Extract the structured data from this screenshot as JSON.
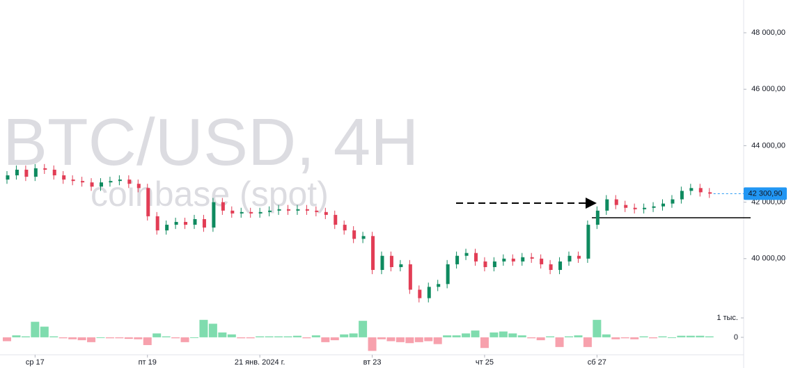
{
  "chart_data": {
    "type": "candlestick",
    "title": "BTC/USD, 4H",
    "subtitle": "coinbase (spot)",
    "categories": [
      null,
      null,
      null,
      "ср 17",
      null,
      null,
      null,
      null,
      null,
      null,
      null,
      null,
      null,
      null,
      null,
      "пт 19",
      null,
      null,
      null,
      null,
      null,
      null,
      null,
      null,
      null,
      null,
      null,
      "21 янв. 2024 г.",
      null,
      null,
      null,
      null,
      null,
      null,
      null,
      null,
      null,
      null,
      null,
      "вт 23",
      null,
      null,
      null,
      null,
      null,
      null,
      null,
      null,
      null,
      null,
      null,
      "чт 25",
      null,
      null,
      null,
      null,
      null,
      null,
      null,
      null,
      null,
      null,
      null,
      "сб 27",
      null,
      null,
      null,
      null,
      null,
      null,
      null,
      null,
      null,
      null,
      null,
      null
    ],
    "open": [
      42800,
      42950,
      43150,
      42900,
      43200,
      43150,
      42950,
      42800,
      42750,
      42700,
      42550,
      42700,
      42750,
      42800,
      42650,
      42500,
      41500,
      41000,
      41200,
      41300,
      41200,
      41400,
      41100,
      42000,
      41700,
      41600,
      41650,
      41600,
      41650,
      41700,
      41750,
      41700,
      41750,
      41700,
      41650,
      41550,
      41200,
      41000,
      40700,
      40800,
      39600,
      40100,
      39700,
      39800,
      38900,
      38600,
      39000,
      39100,
      39800,
      40100,
      40200,
      39900,
      39700,
      39900,
      40000,
      39900,
      40050,
      40000,
      39800,
      39600,
      39900,
      40100,
      40000,
      41200,
      41700,
      42100,
      41900,
      41800,
      41750,
      41800,
      41850,
      41950,
      42100,
      42400,
      42500,
      42350
    ],
    "high": [
      43100,
      43300,
      43300,
      43350,
      43350,
      43300,
      43100,
      42950,
      42900,
      42850,
      42850,
      42900,
      42950,
      42950,
      42800,
      42650,
      41650,
      41350,
      41450,
      41450,
      41550,
      41550,
      42150,
      42150,
      41850,
      41800,
      41800,
      41800,
      41850,
      41900,
      41900,
      41900,
      41900,
      41850,
      41800,
      41700,
      41350,
      41150,
      40950,
      40950,
      40250,
      40250,
      39950,
      39950,
      39050,
      39150,
      39250,
      39950,
      40250,
      40350,
      40350,
      40050,
      40050,
      40150,
      40150,
      40200,
      40200,
      40150,
      39950,
      40050,
      40250,
      40250,
      41350,
      41850,
      42250,
      42250,
      42050,
      41950,
      41950,
      42000,
      42100,
      42250,
      42550,
      42650,
      42650,
      42500
    ],
    "low": [
      42650,
      42800,
      42750,
      42750,
      43000,
      42800,
      42650,
      42600,
      42550,
      42400,
      42400,
      42550,
      42600,
      42500,
      42350,
      41350,
      40850,
      40850,
      41050,
      41050,
      41050,
      40950,
      40950,
      41550,
      41450,
      41450,
      41450,
      41450,
      41500,
      41550,
      41550,
      41550,
      41550,
      41500,
      41400,
      41050,
      40850,
      40550,
      40550,
      39450,
      39450,
      39550,
      39550,
      38750,
      38450,
      38450,
      38850,
      38950,
      39650,
      39950,
      39750,
      39550,
      39550,
      39750,
      39750,
      39750,
      39850,
      39650,
      39450,
      39450,
      39750,
      39850,
      39850,
      41050,
      41550,
      41750,
      41650,
      41600,
      41600,
      41650,
      41700,
      41800,
      41950,
      42250,
      42200,
      42150
    ],
    "close": [
      42950,
      43150,
      42900,
      43200,
      43150,
      42950,
      42800,
      42750,
      42700,
      42550,
      42700,
      42750,
      42800,
      42650,
      42500,
      41500,
      41000,
      41200,
      41300,
      41200,
      41400,
      41100,
      42000,
      41700,
      41600,
      41650,
      41600,
      41650,
      41700,
      41750,
      41700,
      41750,
      41700,
      41650,
      41550,
      41200,
      41000,
      40700,
      40800,
      39600,
      40100,
      39700,
      39800,
      38900,
      38600,
      39000,
      39100,
      39800,
      40100,
      40200,
      39900,
      39700,
      39900,
      40000,
      39900,
      40050,
      40000,
      39800,
      39600,
      39900,
      40100,
      40000,
      41200,
      41700,
      42100,
      41900,
      41800,
      41750,
      41800,
      41850,
      41950,
      42100,
      42400,
      42500,
      42350,
      42300
    ],
    "up_color": "#0e8a5f",
    "down_color": "#e23d55",
    "ylim": [
      37950,
      49160
    ],
    "yticks": [
      {
        "value": 40000,
        "label": "40 000,00"
      },
      {
        "value": 42000,
        "label": "42 000,00"
      },
      {
        "value": 44000,
        "label": "44 000,00"
      },
      {
        "value": 46000,
        "label": "46 000,00"
      },
      {
        "value": 48000,
        "label": "48 000,00"
      }
    ],
    "last_price": {
      "value": 42300.9,
      "label": "42 300,90"
    },
    "last_price_color": "#2196f3",
    "volume": {
      "values": [
        -200,
        100,
        50,
        800,
        550,
        50,
        -50,
        -100,
        -150,
        -250,
        0,
        -50,
        -50,
        -80,
        -100,
        -400,
        200,
        50,
        -50,
        -250,
        0,
        900,
        700,
        250,
        150,
        -50,
        -50,
        50,
        50,
        50,
        50,
        80,
        -50,
        100,
        -250,
        -150,
        150,
        200,
        850,
        -700,
        -100,
        -200,
        -250,
        -300,
        -250,
        -200,
        -350,
        100,
        100,
        200,
        350,
        -550,
        250,
        300,
        200,
        100,
        -50,
        -150,
        50,
        -500,
        50,
        100,
        -500,
        900,
        150,
        -100,
        -50,
        -100,
        50,
        -50,
        50,
        0,
        80,
        80,
        80,
        50
      ],
      "up_color": "#7fdcae",
      "down_color": "#f7a1ad",
      "ylim": [
        -900,
        1430
      ],
      "yticks": [
        0,
        {
          "value": 1000,
          "label": "1 тыс."
        }
      ]
    }
  }
}
